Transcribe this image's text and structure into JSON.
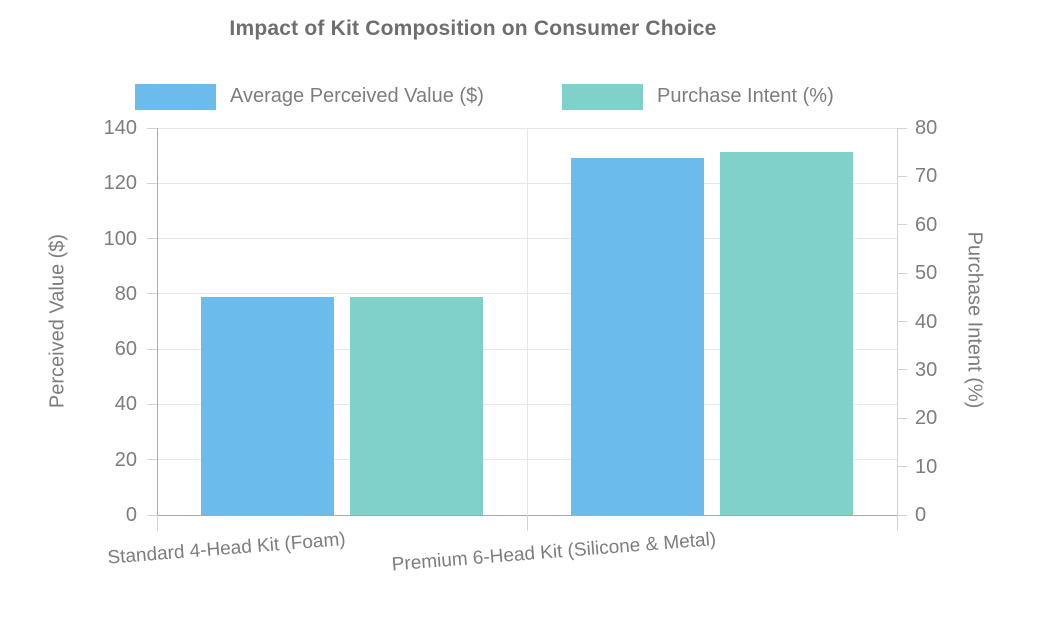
{
  "title": "Impact of Kit Composition on Consumer Choice",
  "colors": {
    "series_blue": "#6bbcec",
    "series_teal": "#7fd1ca",
    "grid_line": "#e7e7e7",
    "axis_line": "#a9a9a9",
    "tick_mark": "#d2d2d2",
    "text_muted": "#7d7d7d",
    "title_text": "#6e6e6e",
    "background": "#ffffff"
  },
  "chart_data": {
    "type": "bar",
    "title": "Impact of Kit Composition on Consumer Choice",
    "categories": [
      "Standard 4-Head Kit (Foam)",
      "Premium 6-Head Kit (Silicone & Metal)"
    ],
    "series": [
      {
        "name": "Average Perceived Value ($)",
        "axis": "left",
        "color": "#6bbcec",
        "values": [
          79,
          129
        ]
      },
      {
        "name": "Purchase Intent (%)",
        "axis": "right",
        "color": "#7fd1ca",
        "values": [
          45,
          75
        ]
      }
    ],
    "left_axis": {
      "title": "Perceived Value ($)",
      "min": 0,
      "max": 140,
      "tick_step": 20,
      "ticks": [
        0,
        20,
        40,
        60,
        80,
        100,
        120,
        140
      ]
    },
    "right_axis": {
      "title": "Purchase Intent (%)",
      "min": 0,
      "max": 80,
      "tick_step": 10,
      "ticks": [
        0,
        10,
        20,
        30,
        40,
        50,
        60,
        70,
        80
      ]
    },
    "grid": true,
    "legend_position": "top",
    "x_label_rotation_deg": -4.5
  }
}
